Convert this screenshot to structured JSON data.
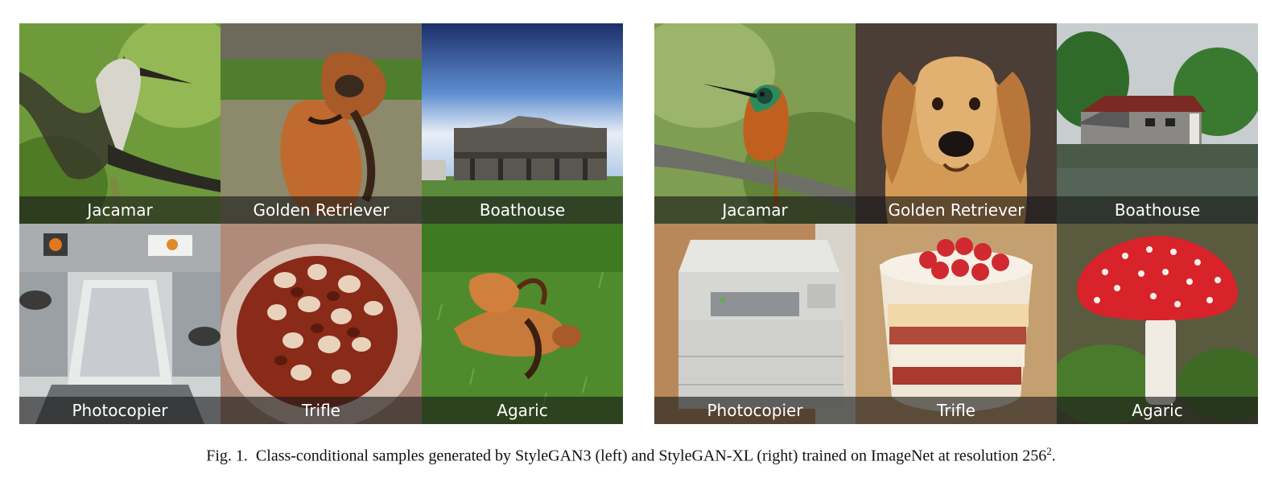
{
  "figure": {
    "left_panel": {
      "tiles": [
        {
          "label": "Jacamar",
          "scene": "jacamar-image"
        },
        {
          "label": "Golden Retriever",
          "scene": "golden-retriever-image"
        },
        {
          "label": "Boathouse",
          "scene": "boathouse-image"
        },
        {
          "label": "Photocopier",
          "scene": "photocopier-image"
        },
        {
          "label": "Trifle",
          "scene": "trifle-image"
        },
        {
          "label": "Agaric",
          "scene": "agaric-image"
        }
      ]
    },
    "right_panel": {
      "tiles": [
        {
          "label": "Jacamar",
          "scene": "jacamar-image"
        },
        {
          "label": "Golden Retriever",
          "scene": "golden-retriever-image"
        },
        {
          "label": "Boathouse",
          "scene": "boathouse-image"
        },
        {
          "label": "Photocopier",
          "scene": "photocopier-image"
        },
        {
          "label": "Trifle",
          "scene": "trifle-image"
        },
        {
          "label": "Agaric",
          "scene": "agaric-image"
        }
      ]
    },
    "caption": {
      "prefix": "Fig. 1.",
      "text": "Class-conditional samples generated by StyleGAN3 (left) and StyleGAN-XL (right) trained on ImageNet at resolution 256",
      "superscript": "2",
      "suffix": "."
    }
  }
}
